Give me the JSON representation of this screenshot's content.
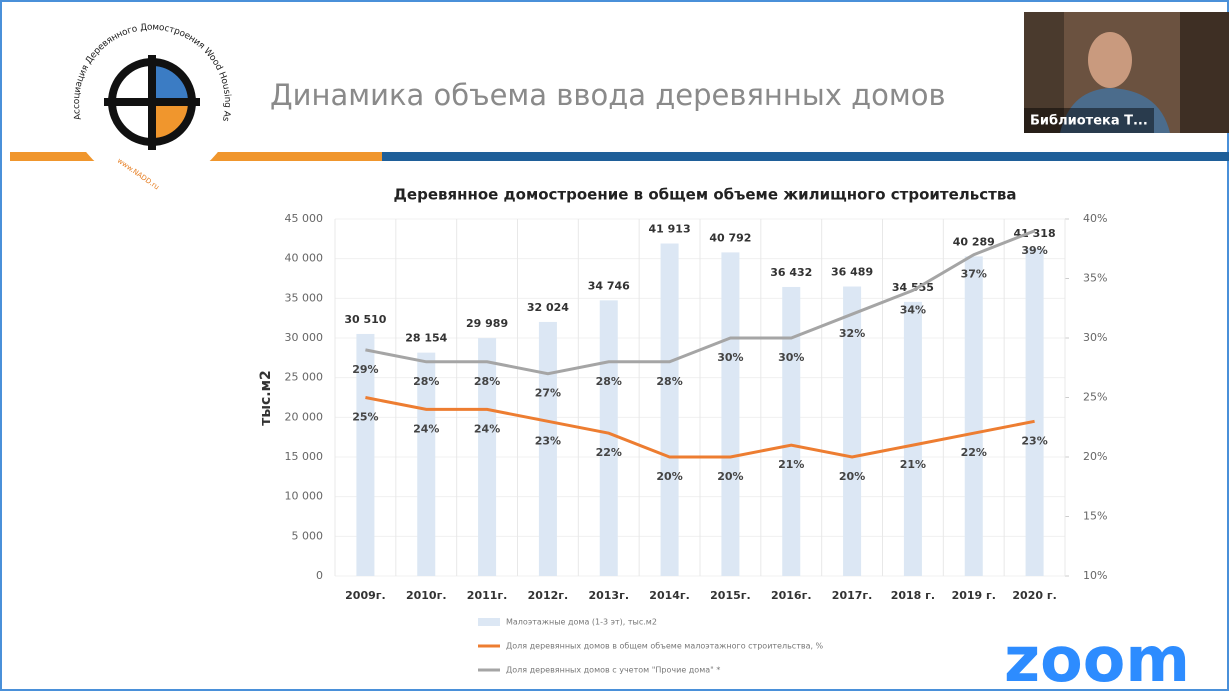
{
  "slide": {
    "title": "Динамика объема ввода деревянных домов",
    "logo_text": "Ассоциация Деревянного Домостроения Wood Housing Association",
    "logo_site": "www.NADD.ru"
  },
  "meeting": {
    "participant": "Библиотека Т...",
    "brand": "zoom"
  },
  "chart_data": {
    "type": "bar",
    "title": "Деревянное домостроение в общем объеме жилищного строительства",
    "y_label": "тыс.м2",
    "categories": [
      "2009г.",
      "2010г.",
      "2011г.",
      "2012г.",
      "2013г.",
      "2014г.",
      "2015г.",
      "2016г.",
      "2017г.",
      "2018 г.",
      "2019 г.",
      "2020 г."
    ],
    "series": [
      {
        "name": "Малоэтажные дома (1-3 эт), тыс.м2",
        "type": "bar",
        "axis": "y",
        "color": "#dce7f4",
        "values": [
          30510,
          28154,
          29989,
          32024,
          34746,
          41913,
          40792,
          36432,
          36489,
          34555,
          40289,
          41318
        ],
        "value_labels": [
          "30 510",
          "28 154",
          "29 989",
          "32 024",
          "34 746",
          "41 913",
          "40 792",
          "36 432",
          "36 489",
          "34 555",
          "40 289",
          "41 318"
        ]
      },
      {
        "name": "Доля деревянных домов в общем объеме малоэтажного строительства, %",
        "type": "line",
        "axis": "y2",
        "color": "#ed7d31",
        "values": [
          25,
          24,
          24,
          23,
          22,
          20,
          20,
          21,
          20,
          21,
          22,
          23
        ],
        "value_labels": [
          "25%",
          "24%",
          "24%",
          "23%",
          "22%",
          "20%",
          "20%",
          "21%",
          "20%",
          "21%",
          "22%",
          "23%"
        ]
      },
      {
        "name": "Доля деревянных домов с учетом \"Прочие дома\" *",
        "type": "line",
        "axis": "y2",
        "color": "#a5a5a5",
        "values": [
          29,
          28,
          28,
          27,
          28,
          28,
          30,
          30,
          32,
          34,
          37,
          39
        ],
        "value_labels": [
          "29%",
          "28%",
          "28%",
          "27%",
          "28%",
          "28%",
          "30%",
          "30%",
          "32%",
          "34%",
          "37%",
          "39%"
        ]
      }
    ],
    "ylim": [
      0,
      45000
    ],
    "yticks": [
      0,
      {
        "value": 5000,
        "label": "5 000"
      },
      {
        "value": 10000,
        "label": "10 000"
      },
      {
        "value": 15000,
        "label": "15 000"
      },
      {
        "value": 20000,
        "label": "20 000"
      },
      {
        "value": 25000,
        "label": "25 000"
      },
      {
        "value": 30000,
        "label": "30 000"
      },
      {
        "value": 35000,
        "label": "35 000"
      },
      {
        "value": 40000,
        "label": "40 000"
      },
      {
        "value": 45000,
        "label": "45 000"
      }
    ],
    "y2lim": [
      10,
      40
    ],
    "y2ticks": [
      {
        "value": 10,
        "label": "10%"
      },
      {
        "value": 15,
        "label": "15%"
      },
      {
        "value": 20,
        "label": "20%"
      },
      {
        "value": 25,
        "label": "25%"
      },
      {
        "value": 30,
        "label": "30%"
      },
      {
        "value": 35,
        "label": "35%"
      },
      {
        "value": 40,
        "label": "40%"
      }
    ],
    "grid": true
  }
}
